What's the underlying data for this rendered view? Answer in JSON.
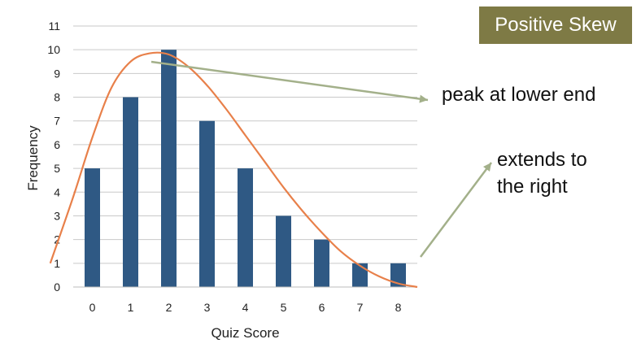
{
  "annotations": {
    "title_box": "Positive Skew",
    "peak_note": "peak at lower end",
    "tail_note": [
      "extends to",
      "the right"
    ],
    "title_box_color": "#7e7a45",
    "arrow_color": "#a3b08a"
  },
  "chart_data": {
    "type": "bar",
    "categories": [
      "0",
      "1",
      "2",
      "3",
      "4",
      "5",
      "6",
      "7",
      "8"
    ],
    "values": [
      5,
      8,
      10,
      7,
      5,
      3,
      2,
      1,
      1
    ],
    "xlabel": "Quiz Score",
    "ylabel": "Frequency",
    "ylim": [
      0,
      11
    ],
    "yticks": [
      0,
      1,
      2,
      3,
      4,
      5,
      6,
      7,
      8,
      9,
      10,
      11
    ],
    "grid": true,
    "bar_color": "#2f5984",
    "overlay_curve": {
      "type": "line",
      "description_color": "#e8804a",
      "x": [
        -1.1,
        -0.5,
        0,
        0.5,
        1,
        1.5,
        2,
        2.5,
        3,
        3.5,
        4,
        4.5,
        5,
        5.5,
        6,
        6.5,
        7,
        7.5,
        8,
        8.5
      ],
      "y": [
        1.0,
        3.8,
        6.3,
        8.4,
        9.5,
        9.85,
        9.8,
        9.3,
        8.5,
        7.5,
        6.4,
        5.3,
        4.2,
        3.2,
        2.3,
        1.5,
        0.9,
        0.45,
        0.15,
        0.0
      ]
    }
  }
}
